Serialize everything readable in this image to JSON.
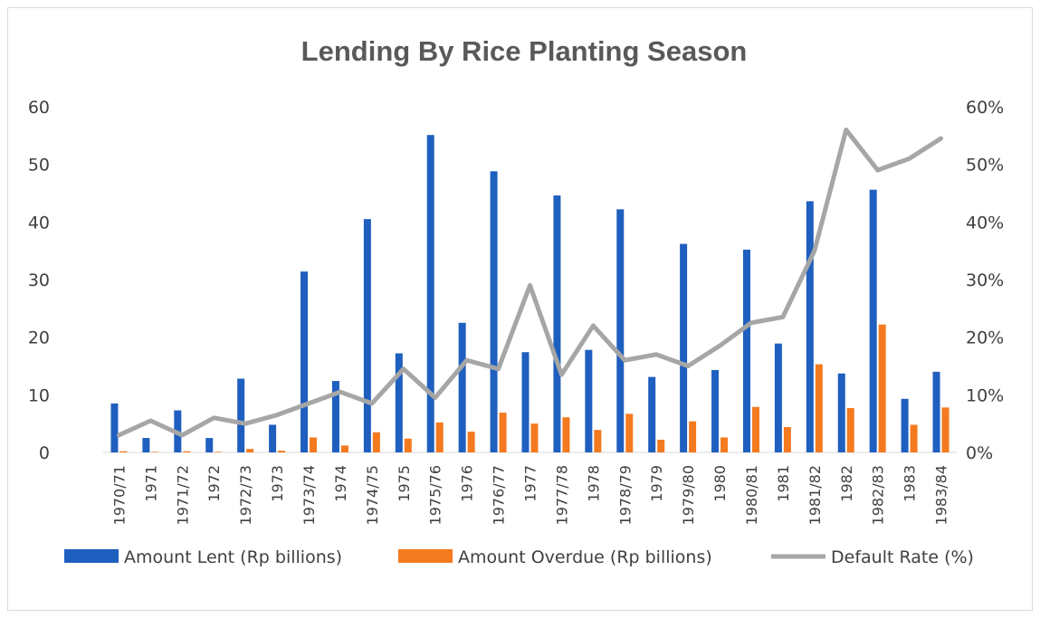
{
  "chart_data": {
    "type": "bar",
    "title": "Lending By Rice Planting Season",
    "categories": [
      "1970/71",
      "1971",
      "1971/72",
      "1972",
      "1972/73",
      "1973",
      "1973/74",
      "1974",
      "1974/75",
      "1975",
      "1975/76",
      "1976",
      "1976/77",
      "1977",
      "1977/78",
      "1978",
      "1978/79",
      "1979",
      "1979/80",
      "1980",
      "1980/81",
      "1981",
      "1981/82",
      "1982",
      "1982/83",
      "1983",
      "1983/84"
    ],
    "series": [
      {
        "name": "Amount Lent (Rp billions)",
        "type": "bar",
        "axis": "left",
        "color": "#1f5fbf",
        "values": [
          8.5,
          2.5,
          7.3,
          2.5,
          12.8,
          4.8,
          31.4,
          12.4,
          40.5,
          17.2,
          55.1,
          22.5,
          48.8,
          17.4,
          44.6,
          17.8,
          42.2,
          13.1,
          36.2,
          14.3,
          35.2,
          18.9,
          43.6,
          13.7,
          45.6,
          9.3,
          14.0
        ]
      },
      {
        "name": "Amount Overdue (Rp billions)",
        "type": "bar",
        "axis": "left",
        "color": "#f47a20",
        "values": [
          0.2,
          0.1,
          0.2,
          0.1,
          0.6,
          0.3,
          2.6,
          1.2,
          3.5,
          2.4,
          5.2,
          3.6,
          6.9,
          5.0,
          6.1,
          3.9,
          6.7,
          2.2,
          5.4,
          2.6,
          7.9,
          4.4,
          15.3,
          7.7,
          22.2,
          4.8,
          7.8
        ]
      },
      {
        "name": "Default Rate (%)",
        "type": "line",
        "axis": "right",
        "color": "#a6a6a6",
        "values": [
          3,
          5.5,
          3,
          6,
          5,
          6.5,
          8.5,
          10.5,
          8.5,
          14.5,
          9.5,
          16,
          14.5,
          29,
          13.5,
          22,
          16,
          17,
          15,
          18.5,
          22.5,
          23.5,
          35,
          56,
          49,
          51,
          54.5
        ]
      }
    ],
    "ylim": [
      0,
      60
    ],
    "yticks": [
      "0",
      "10",
      "20",
      "30",
      "40",
      "50",
      "60"
    ],
    "y2lim": [
      0,
      60
    ],
    "y2ticks": [
      "0%",
      "10%",
      "20%",
      "30%",
      "40%",
      "50%",
      "60%"
    ],
    "xlabel": "",
    "ylabel": "",
    "y2label": "",
    "grid": false,
    "legend_position": "bottom"
  }
}
